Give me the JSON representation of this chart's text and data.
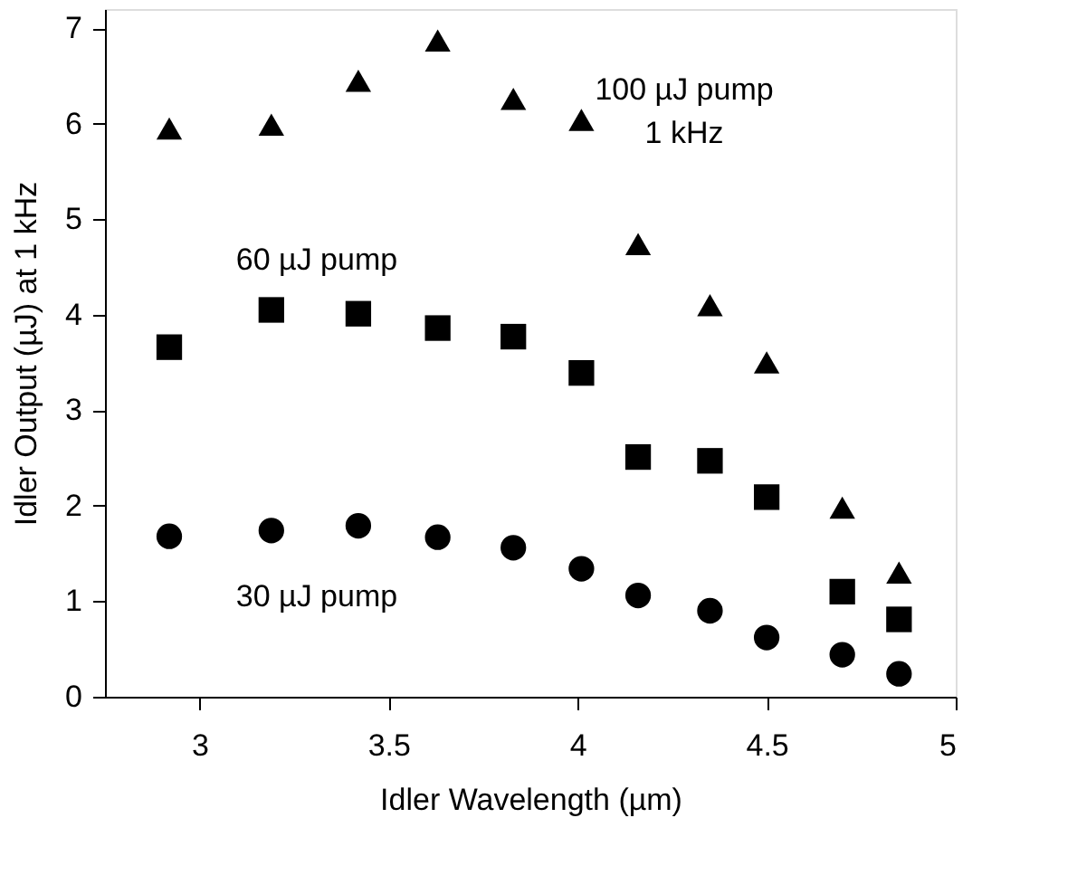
{
  "chart_data": {
    "type": "scatter",
    "xlabel": "Idler Wavelength (µm)",
    "ylabel": "Idler Output (µJ) at 1 kHz",
    "x": [
      2.92,
      3.19,
      3.42,
      3.63,
      3.83,
      4.01,
      4.16,
      4.35,
      4.5,
      4.7,
      4.85
    ],
    "series": [
      {
        "color": "#000000",
        "marker": "triangle",
        "values": [
          5.95,
          5.99,
          6.45,
          6.87,
          6.26,
          6.04,
          4.74,
          4.1,
          3.5,
          1.98,
          1.3
        ]
      },
      {
        "color": "#000000",
        "marker": "square",
        "values": [
          3.66,
          4.05,
          4.01,
          3.86,
          3.77,
          3.39,
          2.51,
          2.47,
          2.09,
          1.1,
          0.81
        ]
      },
      {
        "color": "#000000",
        "marker": "circle",
        "values": [
          1.68,
          1.74,
          1.79,
          1.67,
          1.56,
          1.34,
          1.06,
          0.9,
          0.62,
          0.44,
          0.24
        ]
      }
    ],
    "annotations": [
      "100 µJ pump",
      "1 kHz",
      "60 µJ pump",
      "30 µJ pump"
    ],
    "xlim": [
      2.75,
      5
    ],
    "xticks": [
      3,
      3.5,
      4,
      4.5,
      5
    ],
    "ylim": [
      0,
      7.2
    ],
    "yticks": [
      0,
      1,
      2,
      3,
      4,
      5,
      6,
      7
    ],
    "grid": false
  }
}
